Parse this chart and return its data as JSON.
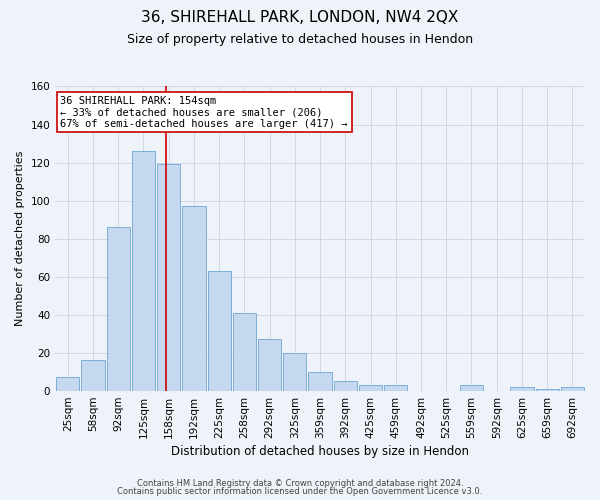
{
  "title": "36, SHIREHALL PARK, LONDON, NW4 2QX",
  "subtitle": "Size of property relative to detached houses in Hendon",
  "xlabel": "Distribution of detached houses by size in Hendon",
  "ylabel": "Number of detached properties",
  "footnote1": "Contains HM Land Registry data © Crown copyright and database right 2024.",
  "footnote2": "Contains public sector information licensed under the Open Government Licence v3.0.",
  "bar_labels": [
    "25sqm",
    "58sqm",
    "92sqm",
    "125sqm",
    "158sqm",
    "192sqm",
    "225sqm",
    "258sqm",
    "292sqm",
    "325sqm",
    "359sqm",
    "392sqm",
    "425sqm",
    "459sqm",
    "492sqm",
    "525sqm",
    "559sqm",
    "592sqm",
    "625sqm",
    "659sqm",
    "692sqm"
  ],
  "bar_values": [
    7,
    16,
    86,
    126,
    119,
    97,
    63,
    41,
    27,
    20,
    10,
    5,
    3,
    3,
    0,
    0,
    3,
    0,
    2,
    1,
    2
  ],
  "bar_color": "#c5d8f0",
  "bar_edge_color": "#7bafd4",
  "property_line_label": "36 SHIREHALL PARK: 154sqm",
  "annotation_line1": "← 33% of detached houses are smaller (206)",
  "annotation_line2": "67% of semi-detached houses are larger (417) →",
  "annotation_box_color": "#ffffff",
  "annotation_box_edge": "#cc0000",
  "vline_color": "#cc0000",
  "ylim": [
    0,
    160
  ],
  "yticks": [
    0,
    20,
    40,
    60,
    80,
    100,
    120,
    140,
    160
  ],
  "grid_color": "#d0d8e8",
  "bg_color": "#eef2f9",
  "title_fontsize": 11,
  "subtitle_fontsize": 9,
  "xlabel_fontsize": 8.5,
  "ylabel_fontsize": 8,
  "tick_fontsize": 7.5,
  "footnote_fontsize": 6,
  "annotation_fontsize": 7.5,
  "bin_centers": [
    25,
    58,
    92,
    125,
    158,
    192,
    225,
    258,
    292,
    325,
    359,
    392,
    425,
    459,
    492,
    525,
    559,
    592,
    625,
    659,
    692
  ],
  "property_size": 154
}
